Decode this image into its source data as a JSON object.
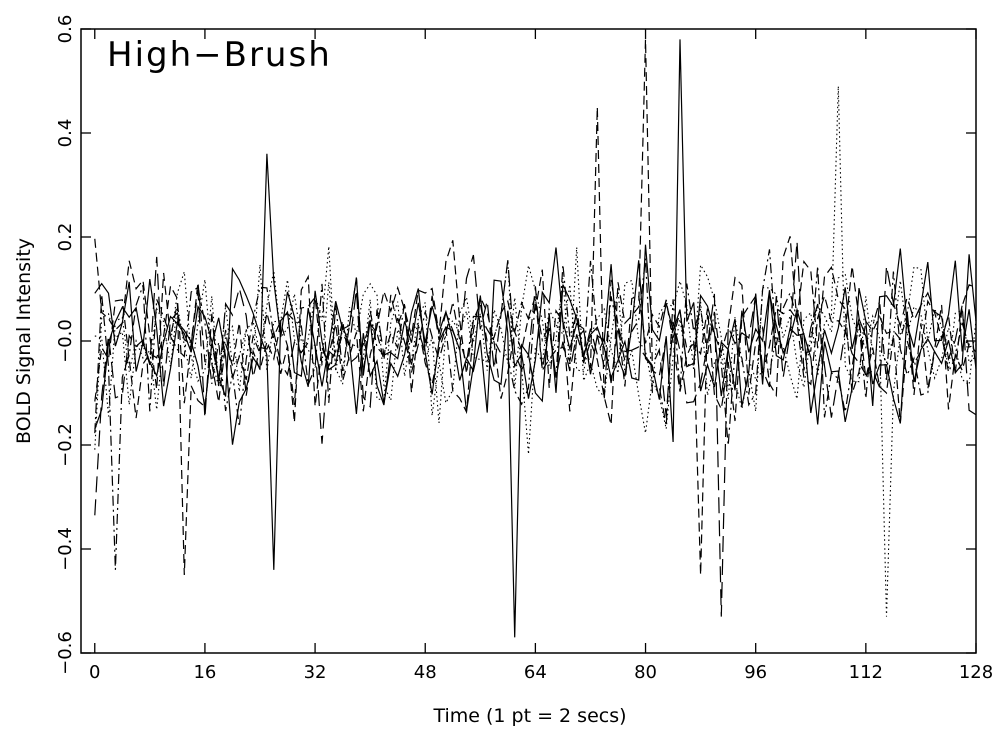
{
  "chart_data": {
    "type": "line",
    "title": "High−Brush",
    "xlabel": "Time (1 pt = 2 secs)",
    "ylabel": "BOLD Signal Intensity",
    "xlim": [
      -2,
      128
    ],
    "ylim": [
      -0.6,
      0.6
    ],
    "xticks": [
      0,
      16,
      32,
      48,
      64,
      80,
      96,
      112,
      128
    ],
    "xtick_labels": [
      "0",
      "16",
      "32",
      "48",
      "64",
      "80",
      "96",
      "112",
      "128"
    ],
    "yticks": [
      -0.6,
      -0.4,
      -0.2,
      0.0,
      0.2,
      0.4,
      0.6
    ],
    "ytick_labels": [
      "−0.6",
      "−0.4",
      "−0.2",
      "−0.0",
      "0.2",
      "0.4",
      "0.6"
    ],
    "grid": false,
    "legend": "none",
    "line_color": "#000000",
    "series_styles": [
      "solid",
      "solid",
      "dashed",
      "dashed",
      "long-dashed",
      "dotted",
      "dotted",
      "dash-dot"
    ],
    "series_seeds": [
      11,
      23,
      37,
      41,
      53,
      67,
      79,
      97
    ],
    "series_amplitude": 0.16,
    "series_peaks": [
      {
        "x": 25,
        "y": 0.36
      },
      {
        "x": 61,
        "y": -0.57
      },
      {
        "x": 80,
        "y": 0.58
      },
      {
        "x": 88,
        "y": -0.45
      },
      {
        "x": 91,
        "y": -0.53
      },
      {
        "x": 108,
        "y": 0.49
      },
      {
        "x": 115,
        "y": -0.53
      },
      {
        "x": 3,
        "y": -0.44
      },
      {
        "x": 85,
        "y": 0.58
      },
      {
        "x": 26,
        "y": -0.44
      },
      {
        "x": 13,
        "y": -0.45
      },
      {
        "x": 73,
        "y": 0.45
      }
    ]
  }
}
